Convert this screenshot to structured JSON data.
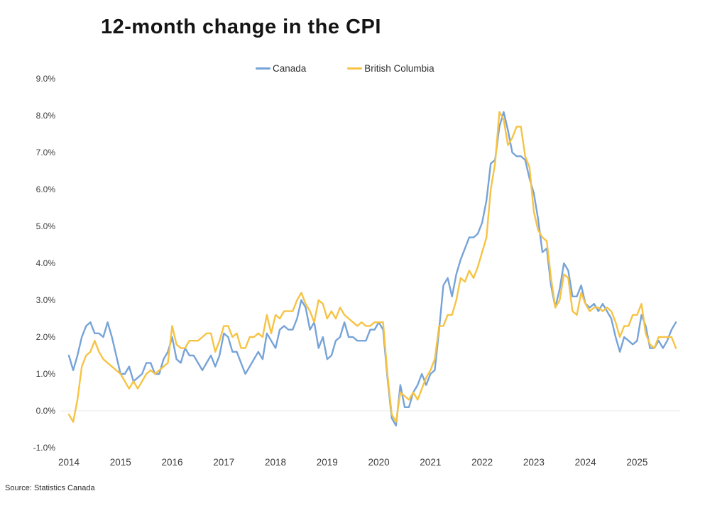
{
  "title": "12-month change in the CPI",
  "source_note": "Source: Statistics Canada",
  "chart_data": {
    "type": "line",
    "title": "12-month change in the CPI",
    "xlabel": "",
    "ylabel": "",
    "y_tick_format": "percent, one decimal",
    "ylim": [
      -1.0,
      9.0
    ],
    "grid": "single light horizontal gridline at 0.0% only",
    "legend_position": "top-center",
    "frequency": "monthly",
    "x_start": "2014-01",
    "x_end": "2025-10",
    "x_tick_labels": [
      "2014",
      "2015",
      "2016",
      "2017",
      "2018",
      "2019",
      "2020",
      "2021",
      "2022",
      "2023",
      "2024",
      "2025"
    ],
    "y_ticks": [
      {
        "label": "9.0%",
        "value": 9
      },
      {
        "label": "8.0%",
        "value": 8
      },
      {
        "label": "7.0%",
        "value": 7
      },
      {
        "label": "6.0%",
        "value": 6
      },
      {
        "label": "5.0%",
        "value": 5
      },
      {
        "label": "4.0%",
        "value": 4
      },
      {
        "label": "3.0%",
        "value": 3
      },
      {
        "label": "2.0%",
        "value": 2
      },
      {
        "label": "1.0%",
        "value": 1
      },
      {
        "label": "0.0%",
        "value": 0
      },
      {
        "label": "-1.0%",
        "value": -1
      }
    ],
    "series": [
      {
        "name": "Canada",
        "color": "#76A3D8",
        "values": [
          1.5,
          1.1,
          1.5,
          2.0,
          2.3,
          2.4,
          2.1,
          2.1,
          2.0,
          2.4,
          2.0,
          1.5,
          1.0,
          1.0,
          1.2,
          0.8,
          0.9,
          1.0,
          1.3,
          1.3,
          1.0,
          1.0,
          1.4,
          1.6,
          2.0,
          1.4,
          1.3,
          1.7,
          1.5,
          1.5,
          1.3,
          1.1,
          1.3,
          1.5,
          1.2,
          1.5,
          2.1,
          2.0,
          1.6,
          1.6,
          1.3,
          1.0,
          1.2,
          1.4,
          1.6,
          1.4,
          2.1,
          1.9,
          1.7,
          2.2,
          2.3,
          2.2,
          2.2,
          2.5,
          3.0,
          2.8,
          2.2,
          2.4,
          1.7,
          2.0,
          1.4,
          1.5,
          1.9,
          2.0,
          2.4,
          2.0,
          2.0,
          1.9,
          1.9,
          1.9,
          2.2,
          2.2,
          2.4,
          2.2,
          0.9,
          -0.2,
          -0.4,
          0.7,
          0.1,
          0.1,
          0.5,
          0.7,
          1.0,
          0.7,
          1.0,
          1.1,
          2.2,
          3.4,
          3.6,
          3.1,
          3.7,
          4.1,
          4.4,
          4.7,
          4.7,
          4.8,
          5.1,
          5.7,
          6.7,
          6.8,
          7.7,
          8.1,
          7.6,
          7.0,
          6.9,
          6.9,
          6.8,
          6.3,
          5.9,
          5.2,
          4.3,
          4.4,
          3.4,
          2.8,
          3.3,
          4.0,
          3.8,
          3.1,
          3.1,
          3.4,
          2.9,
          2.8,
          2.9,
          2.7,
          2.9,
          2.7,
          2.5,
          2.0,
          1.6,
          2.0,
          1.9,
          1.8,
          1.9,
          2.6,
          2.3,
          1.7,
          1.7,
          1.9,
          1.7,
          1.9,
          2.2,
          2.4
        ]
      },
      {
        "name": "British Columbia",
        "color": "#F6C344",
        "values": [
          -0.1,
          -0.3,
          0.3,
          1.2,
          1.5,
          1.6,
          1.9,
          1.6,
          1.4,
          1.3,
          1.2,
          1.1,
          1.0,
          0.8,
          0.6,
          0.8,
          0.6,
          0.8,
          1.0,
          1.1,
          1.0,
          1.1,
          1.2,
          1.3,
          2.3,
          1.8,
          1.7,
          1.7,
          1.9,
          1.9,
          1.9,
          2.0,
          2.1,
          2.1,
          1.6,
          1.9,
          2.3,
          2.3,
          2.0,
          2.1,
          1.7,
          1.7,
          2.0,
          2.0,
          2.1,
          2.0,
          2.6,
          2.1,
          2.6,
          2.5,
          2.7,
          2.7,
          2.7,
          3.0,
          3.2,
          2.9,
          2.7,
          2.4,
          3.0,
          2.9,
          2.5,
          2.7,
          2.5,
          2.8,
          2.6,
          2.5,
          2.4,
          2.3,
          2.4,
          2.3,
          2.3,
          2.4,
          2.4,
          2.4,
          1.0,
          -0.1,
          -0.3,
          0.5,
          0.4,
          0.3,
          0.5,
          0.3,
          0.6,
          0.9,
          1.1,
          1.4,
          2.3,
          2.3,
          2.6,
          2.6,
          3.0,
          3.6,
          3.5,
          3.8,
          3.6,
          3.9,
          4.3,
          4.7,
          6.0,
          6.7,
          8.1,
          7.9,
          7.2,
          7.4,
          7.7,
          7.7,
          6.9,
          6.6,
          5.4,
          4.9,
          4.7,
          4.6,
          3.6,
          2.8,
          3.0,
          3.7,
          3.6,
          2.7,
          2.6,
          3.2,
          2.9,
          2.7,
          2.8,
          2.8,
          2.7,
          2.8,
          2.7,
          2.4,
          2.0,
          2.3,
          2.3,
          2.6,
          2.6,
          2.9,
          2.1,
          1.8,
          1.7,
          2.0,
          2.0,
          2.0,
          2.0,
          1.7
        ]
      }
    ],
    "source": "Source: Statistics Canada"
  }
}
